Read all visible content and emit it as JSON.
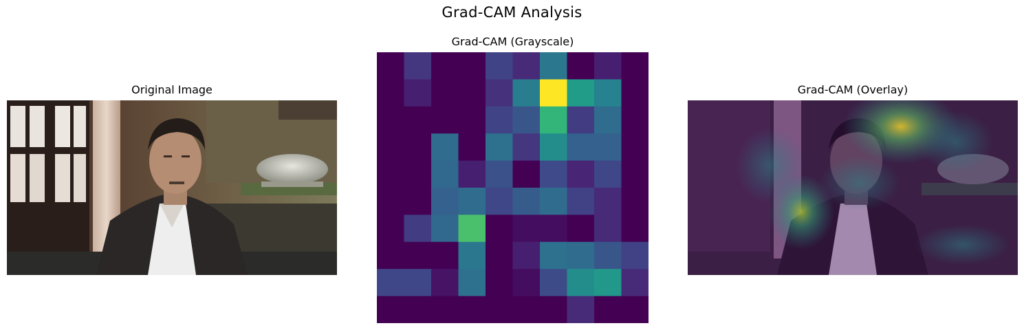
{
  "figure": {
    "title": "Grad-CAM Analysis"
  },
  "panels": {
    "original": {
      "title": "Original Image"
    },
    "grayscale": {
      "title": "Grad-CAM (Grayscale)"
    },
    "overlay": {
      "title": "Grad-CAM (Overlay)"
    }
  },
  "chart_data": {
    "type": "heatmap",
    "title": "Grad-CAM (Grayscale)",
    "colormap": "viridis",
    "axes_visible": false,
    "rows": 10,
    "cols": 10,
    "vmin": 0,
    "vmax": 1,
    "values": [
      [
        0.0,
        0.18,
        0.0,
        0.0,
        0.23,
        0.14,
        0.45,
        0.0,
        0.1,
        0.0
      ],
      [
        0.0,
        0.1,
        0.0,
        0.0,
        0.16,
        0.48,
        1.0,
        0.62,
        0.5,
        0.0
      ],
      [
        0.0,
        0.0,
        0.0,
        0.0,
        0.23,
        0.3,
        0.74,
        0.2,
        0.4,
        0.0
      ],
      [
        0.0,
        0.0,
        0.4,
        0.0,
        0.42,
        0.18,
        0.55,
        0.35,
        0.35,
        0.0
      ],
      [
        0.0,
        0.0,
        0.38,
        0.1,
        0.28,
        0.0,
        0.25,
        0.12,
        0.24,
        0.0
      ],
      [
        0.0,
        0.0,
        0.35,
        0.4,
        0.24,
        0.33,
        0.4,
        0.22,
        0.14,
        0.0
      ],
      [
        0.0,
        0.2,
        0.38,
        0.8,
        0.0,
        0.04,
        0.04,
        0.0,
        0.14,
        0.0
      ],
      [
        0.0,
        0.0,
        0.0,
        0.45,
        0.0,
        0.1,
        0.42,
        0.4,
        0.3,
        0.22
      ],
      [
        0.24,
        0.24,
        0.06,
        0.42,
        0.0,
        0.04,
        0.26,
        0.55,
        0.6,
        0.14
      ],
      [
        0.0,
        0.0,
        0.0,
        0.0,
        0.0,
        0.0,
        0.0,
        0.14,
        0.0,
        0.0
      ]
    ]
  }
}
